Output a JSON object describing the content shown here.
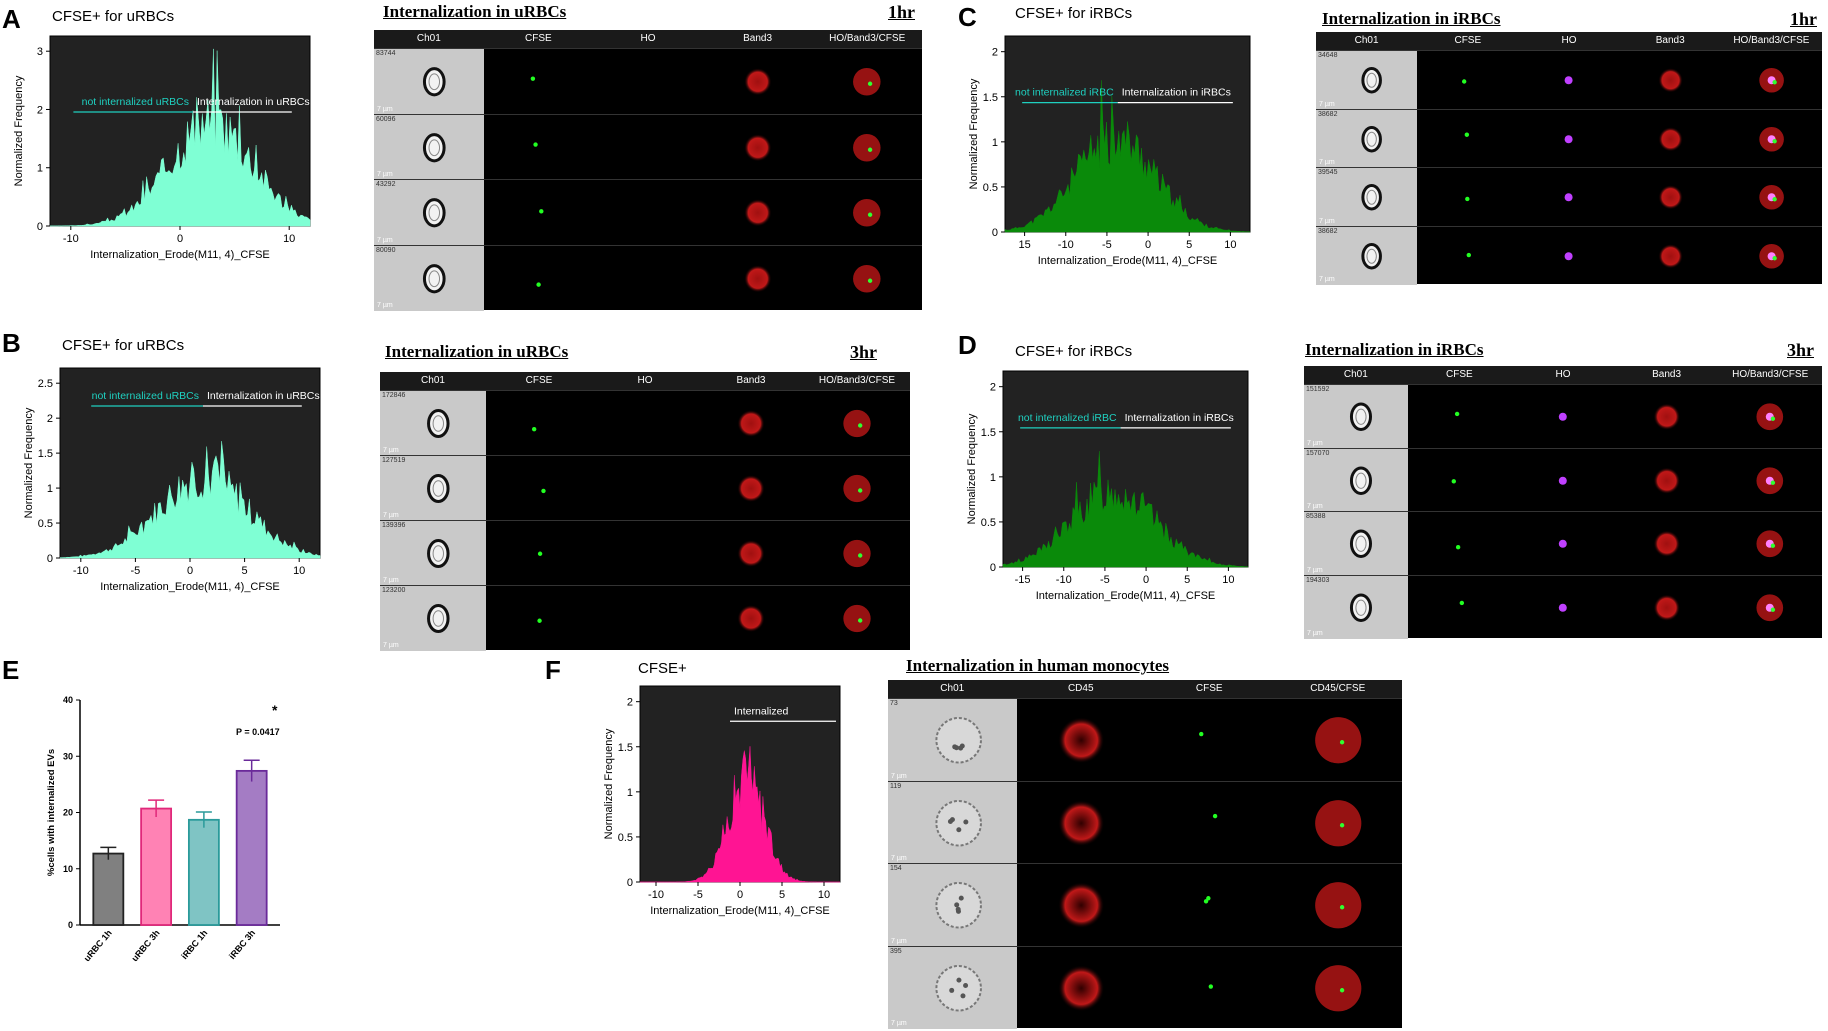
{
  "panels": {
    "A": {
      "label": "A",
      "hist_title": "CFSE+ for uRBCs",
      "grid_title": "Internalization  in uRBCs",
      "time": "1hr",
      "gate_left": "not internalized uRBCs",
      "gate_right": "Internalization in uRBCs",
      "ylabel": "Normalized Frequency",
      "xlabel": "Internalization_Erode(M11, 4)_CFSE",
      "yticks": [
        "0",
        "1",
        "2",
        "3"
      ],
      "xticks": [
        "-10",
        "0",
        "10"
      ],
      "fill": "#7fffd4",
      "columns": [
        "Ch01",
        "CFSE",
        "HO",
        "Band3",
        "HO/Band3/CFSE"
      ],
      "cells": [
        "83744",
        "60096",
        "43292",
        "80090"
      ]
    },
    "B": {
      "label": "B",
      "hist_title": "CFSE+ for uRBCs",
      "grid_title": "Internalization  in uRBCs",
      "time": "3hr",
      "gate_left": "not internalized uRBCs",
      "gate_right": "Internalization in uRBCs",
      "ylabel": "Normalized Frequency",
      "xlabel": "Internalization_Erode(M11, 4)_CFSE",
      "yticks": [
        "0",
        "0.5",
        "1",
        "1.5",
        "2",
        "2.5"
      ],
      "xticks": [
        "-10",
        "-5",
        "0",
        "5",
        "10"
      ],
      "fill": "#7fffd4",
      "columns": [
        "Ch01",
        "CFSE",
        "HO",
        "Band3",
        "HO/Band3/CFSE"
      ],
      "cells": [
        "172846",
        "127519",
        "139396",
        "123200"
      ]
    },
    "C": {
      "label": "C",
      "hist_title": "CFSE+ for iRBCs",
      "grid_title": "Internalization  in iRBCs",
      "time": "1hr",
      "gate_left": "not internalized iRBC",
      "gate_right": "Internalization in iRBCs",
      "ylabel": "Normalized Frequency",
      "xlabel": "Internalization_Erode(M11, 4)_CFSE",
      "yticks": [
        "0",
        "0.5",
        "1",
        "1.5",
        "2"
      ],
      "xticks": [
        "15",
        "-10",
        "-5",
        "0",
        "5",
        "10"
      ],
      "fill": "#0a8a0a",
      "columns": [
        "Ch01",
        "CFSE",
        "HO",
        "Band3",
        "HO/Band3/CFSE"
      ],
      "cells": [
        "34648",
        "38682",
        "39545",
        "38682"
      ]
    },
    "D": {
      "label": "D",
      "hist_title": "CFSE+ for iRBCs",
      "grid_title": "Internalization  in iRBCs",
      "time": "3hr",
      "gate_left": "not internalized iRBC",
      "gate_right": "Internalization in iRBCs",
      "ylabel": "Normalized Frequency",
      "xlabel": "Internalization_Erode(M11, 4)_CFSE",
      "yticks": [
        "0",
        "0.5",
        "1",
        "1.5",
        "2"
      ],
      "xticks": [
        "-15",
        "-10",
        "-5",
        "0",
        "5",
        "10"
      ],
      "fill": "#0a8a0a",
      "columns": [
        "Ch01",
        "CFSE",
        "HO",
        "Band3",
        "HO/Band3/CFSE"
      ],
      "cells": [
        "151592",
        "157070",
        "85388",
        "194303"
      ]
    },
    "F": {
      "label": "F",
      "hist_title": "CFSE+",
      "grid_title": "Internalization  in human monocytes",
      "gate_right": "Internalized",
      "ylabel": "Normalized Frequency",
      "xlabel": "Internalization_Erode(M11, 4)_CFSE",
      "yticks": [
        "0",
        "0.5",
        "1",
        "1.5",
        "2"
      ],
      "xticks": [
        "-10",
        "-5",
        "0",
        "5",
        "10"
      ],
      "fill": "#ff1493",
      "columns": [
        "Ch01",
        "CD45",
        "CFSE",
        "CD45/CFSE"
      ],
      "cells": [
        "73",
        "119",
        "154",
        "395"
      ]
    }
  },
  "scale_label": "7 µm",
  "E": {
    "label": "E",
    "significance_star": "*",
    "p_value": "P = 0.0417"
  },
  "chart_data": {
    "type": "bar",
    "categories": [
      "uRBC 1h",
      "uRBC 3h",
      "iRBC 1h",
      "iRBC 3h"
    ],
    "values": [
      12.7,
      20.7,
      18.7,
      27.4
    ],
    "errors": [
      1.1,
      1.5,
      1.4,
      1.9
    ],
    "colors": [
      "#808080",
      "#ff82b4",
      "#7fc4c4",
      "#a47cc4"
    ],
    "edge_colors": [
      "#222222",
      "#e0287a",
      "#2a9a9a",
      "#6a2a9a"
    ],
    "ylabel": "%cells with internalized EVs",
    "ylim": [
      0,
      40
    ],
    "yticks": [
      0,
      10,
      20,
      30,
      40
    ]
  }
}
